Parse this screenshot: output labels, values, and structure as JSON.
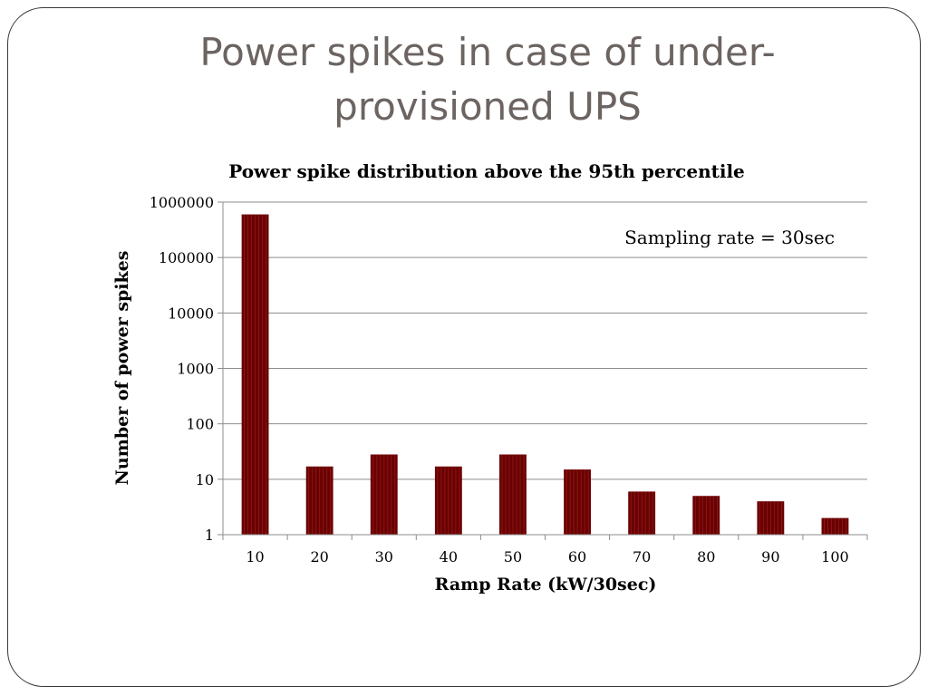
{
  "slide": {
    "title_line1": "Power spikes in case of under-",
    "title_line2": "provisioned UPS"
  },
  "colors": {
    "bar": "#6b0000",
    "bar_stripe": "#9a2a2a",
    "gridline": "#8c8c8c",
    "title_text": "#6b6461"
  },
  "chart_data": {
    "type": "bar",
    "title": "Power spike distribution above the 95th percentile",
    "xlabel": "Ramp Rate (kW/30sec)",
    "ylabel": "Number of power spikes",
    "annotation": "Sampling rate = 30sec",
    "yscale": "log",
    "ylim": [
      1,
      1000000
    ],
    "yticks": [
      "1",
      "10",
      "100",
      "1000",
      "10000",
      "100000",
      "1000000"
    ],
    "categories": [
      "10",
      "20",
      "30",
      "40",
      "50",
      "60",
      "70",
      "80",
      "90",
      "100"
    ],
    "values": [
      600000,
      17,
      28,
      17,
      28,
      15,
      6,
      5,
      4,
      2
    ],
    "grid": true,
    "legend": "none"
  }
}
